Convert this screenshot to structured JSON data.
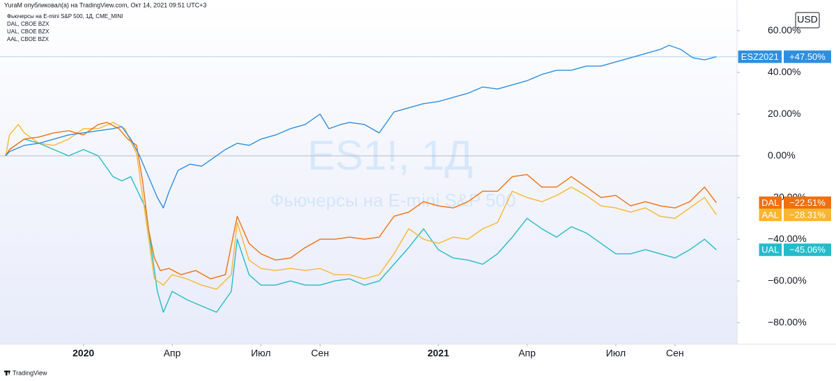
{
  "header": {
    "published": "YuraM опубликовал(а) на TradingView.com, Окт 14, 2021 09:51 UTC+3",
    "legend": [
      "Фьючерсы на E-mini S&P 500, 1Д, CME_MINI",
      "DAL, CBOE BZX",
      "UAL, CBOE BZX",
      "AAL, CBOE BZX"
    ]
  },
  "footer": "TradingView",
  "chart_data": {
    "type": "line",
    "watermark": [
      "ES1!, 1Д",
      "Фьючерсы на E-mini S&P 500"
    ],
    "currency": "USD",
    "grid": false,
    "xlim": [
      -2.82,
      22.1
    ],
    "xticks": [
      {
        "value": 0,
        "label": "2020"
      },
      {
        "value": 3,
        "label": "Апр"
      },
      {
        "value": 6,
        "label": "Июл"
      },
      {
        "value": 8,
        "label": "Сен"
      },
      {
        "value": 12,
        "label": "2021"
      },
      {
        "value": 15,
        "label": "Апр"
      },
      {
        "value": 18,
        "label": "Июл"
      },
      {
        "value": 20,
        "label": "Сен"
      }
    ],
    "ylim": [
      -90.3,
      74.7
    ],
    "yticks": [
      {
        "value": 60,
        "label": "60.00%"
      },
      {
        "value": 40,
        "label": "40.00%"
      },
      {
        "value": 20,
        "label": "20.00%"
      },
      {
        "value": 0,
        "label": "0.00%"
      },
      {
        "value": -20,
        "label": "−20.00%"
      },
      {
        "value": -40,
        "label": "−40.00%"
      },
      {
        "value": -60,
        "label": "−60.00%"
      },
      {
        "value": -80,
        "label": "−80.00%"
      }
    ],
    "series": [
      {
        "name": "ESZ2021",
        "color": "#2d8fe0",
        "end_label": "+47.50%",
        "x": [
          -2.63,
          -2.5,
          -2,
          -1.5,
          -1,
          -0.5,
          0,
          0.5,
          1,
          1.3,
          1.6,
          1.9,
          2.2,
          2.5,
          2.7,
          2.9,
          3.2,
          3.6,
          4,
          4.4,
          4.8,
          5.2,
          5.6,
          6,
          6.5,
          7,
          7.5,
          8,
          8.3,
          8.7,
          9,
          9.5,
          10,
          10.5,
          11,
          11.5,
          12,
          12.5,
          13,
          13.5,
          14,
          14.5,
          15,
          15.5,
          16,
          16.5,
          17,
          17.5,
          18,
          18.5,
          19,
          19.5,
          19.8,
          20.2,
          20.6,
          21,
          21.4
        ],
        "values": [
          0,
          2,
          5,
          6,
          8,
          10,
          11,
          12,
          13,
          14,
          8,
          0,
          -10,
          -20,
          -25,
          -17,
          -7,
          -4,
          -5,
          -1,
          3,
          6,
          5,
          8,
          10,
          13,
          15,
          20,
          13,
          15,
          16,
          15,
          11,
          21,
          23,
          25,
          26,
          28,
          30,
          33,
          32,
          34,
          36,
          39,
          41,
          41,
          43,
          43,
          45,
          47,
          49,
          51,
          53,
          51,
          47,
          46,
          47.5
        ]
      },
      {
        "name": "DAL",
        "color": "#f0700e",
        "end_label": "−22.51%",
        "x": [
          -2.63,
          -2.5,
          -2,
          -1.5,
          -1,
          -0.5,
          0,
          0.5,
          0.8,
          1.2,
          1.5,
          1.8,
          2,
          2.2,
          2.4,
          2.6,
          2.9,
          3.3,
          3.8,
          4.3,
          4.8,
          5.2,
          5.6,
          6,
          6.5,
          7,
          7.5,
          8,
          8.5,
          9,
          9.5,
          10,
          10.5,
          11,
          11.5,
          12,
          12.5,
          13,
          13.5,
          14,
          14.5,
          15,
          15.5,
          16,
          16.5,
          17,
          17.5,
          18,
          18.5,
          19,
          19.5,
          20,
          20.5,
          21,
          21.4
        ],
        "values": [
          0,
          3,
          8,
          9,
          11,
          12,
          10,
          15,
          16,
          13,
          8,
          5,
          -12,
          -35,
          -49,
          -55,
          -54,
          -57,
          -55,
          -59,
          -57,
          -29,
          -42,
          -47,
          -50,
          -49,
          -44,
          -40,
          -40,
          -39,
          -40,
          -39,
          -29,
          -27,
          -22,
          -24,
          -25,
          -22,
          -17,
          -17,
          -10,
          -9,
          -15,
          -15,
          -10,
          -15,
          -20,
          -19,
          -24,
          -22,
          -24,
          -25,
          -22,
          -15,
          -22.51
        ]
      },
      {
        "name": "AAL",
        "color": "#f7b731",
        "end_label": "−28.31%",
        "x": [
          -2.63,
          -2.5,
          -2.2,
          -2,
          -1.5,
          -1,
          -0.5,
          0,
          0.5,
          1,
          1.4,
          1.8,
          2,
          2.2,
          2.4,
          2.7,
          3,
          3.5,
          4,
          4.5,
          5,
          5.2,
          5.6,
          6,
          6.5,
          7,
          7.5,
          8,
          8.5,
          9,
          9.5,
          10,
          10.5,
          11,
          11.5,
          12,
          12.5,
          13,
          13.5,
          14,
          14.5,
          15,
          15.5,
          16,
          16.5,
          17,
          17.5,
          18,
          18.5,
          19,
          19.5,
          20,
          20.5,
          21,
          21.4
        ],
        "values": [
          0,
          10,
          15,
          11,
          6,
          5,
          8,
          13,
          13,
          16,
          13,
          1,
          -19,
          -39,
          -59,
          -62,
          -57,
          -59,
          -62,
          -64,
          -57,
          -32,
          -50,
          -54,
          -55,
          -54,
          -55,
          -54,
          -57,
          -57,
          -59,
          -57,
          -47,
          -35,
          -40,
          -42,
          -39,
          -40,
          -35,
          -32,
          -17,
          -20,
          -22,
          -19,
          -15,
          -19,
          -24,
          -25,
          -27,
          -25,
          -29,
          -30,
          -25,
          -20,
          -28.31
        ]
      },
      {
        "name": "UAL",
        "color": "#22bccb",
        "end_label": "−45.06%",
        "x": [
          -2.63,
          -2.5,
          -2,
          -1.5,
          -1,
          -0.5,
          0,
          0.5,
          1,
          1.3,
          1.6,
          1.9,
          2.1,
          2.3,
          2.5,
          2.7,
          3,
          3.5,
          4,
          4.5,
          5,
          5.2,
          5.6,
          6,
          6.5,
          7,
          7.5,
          8,
          8.5,
          9,
          9.5,
          10,
          10.5,
          11,
          11.5,
          12,
          12.5,
          13,
          13.5,
          14,
          14.5,
          15,
          15.5,
          16,
          16.5,
          17,
          17.5,
          18,
          18.5,
          19,
          19.5,
          20,
          20.5,
          21,
          21.4
        ],
        "values": [
          0,
          3,
          8,
          6,
          3,
          0,
          3,
          0,
          -10,
          -12,
          -10,
          -19,
          -25,
          -45,
          -65,
          -75,
          -65,
          -69,
          -72,
          -75,
          -65,
          -40,
          -57,
          -62,
          -62,
          -60,
          -62,
          -62,
          -60,
          -59,
          -62,
          -60,
          -52,
          -44,
          -35,
          -45,
          -49,
          -50,
          -52,
          -47,
          -39,
          -30,
          -35,
          -39,
          -34,
          -37,
          -42,
          -47,
          -47,
          -45,
          -47,
          -49,
          -45,
          -40,
          -45.06
        ]
      }
    ]
  }
}
